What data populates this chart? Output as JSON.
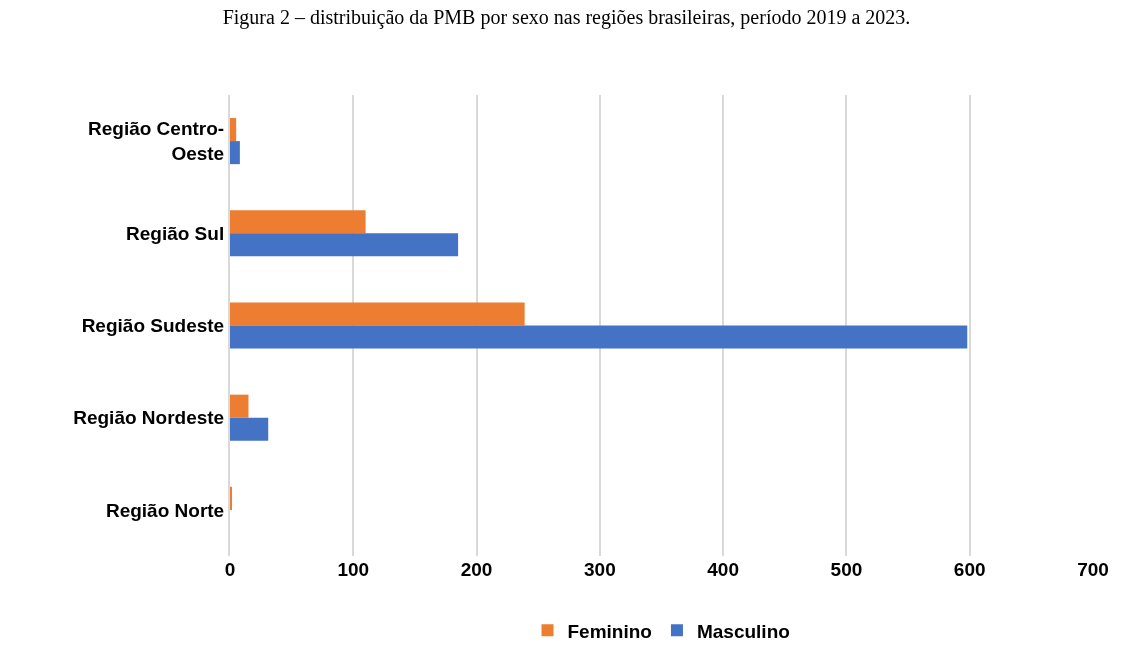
{
  "chart_data": {
    "type": "bar",
    "orientation": "horizontal",
    "title": "Figura 2 – distribuição da PMB por sexo nas regiões brasileiras, período 2019 a 2023.",
    "categories": [
      "Região Centro-Oeste",
      "Região Sul",
      "Região Sudeste",
      "Região Nordeste",
      "Região Norte"
    ],
    "series": [
      {
        "name": "Feminino",
        "color": "#ed7d31",
        "values": [
          5,
          110,
          239,
          15,
          1
        ]
      },
      {
        "name": "Masculino",
        "color": "#4472c4",
        "values": [
          8,
          185,
          598,
          31,
          0
        ]
      }
    ],
    "xlim": [
      0,
      700
    ],
    "xticks": [
      0,
      100,
      200,
      300,
      400,
      500,
      600,
      700
    ],
    "grid": "x",
    "legend": "bottom"
  }
}
